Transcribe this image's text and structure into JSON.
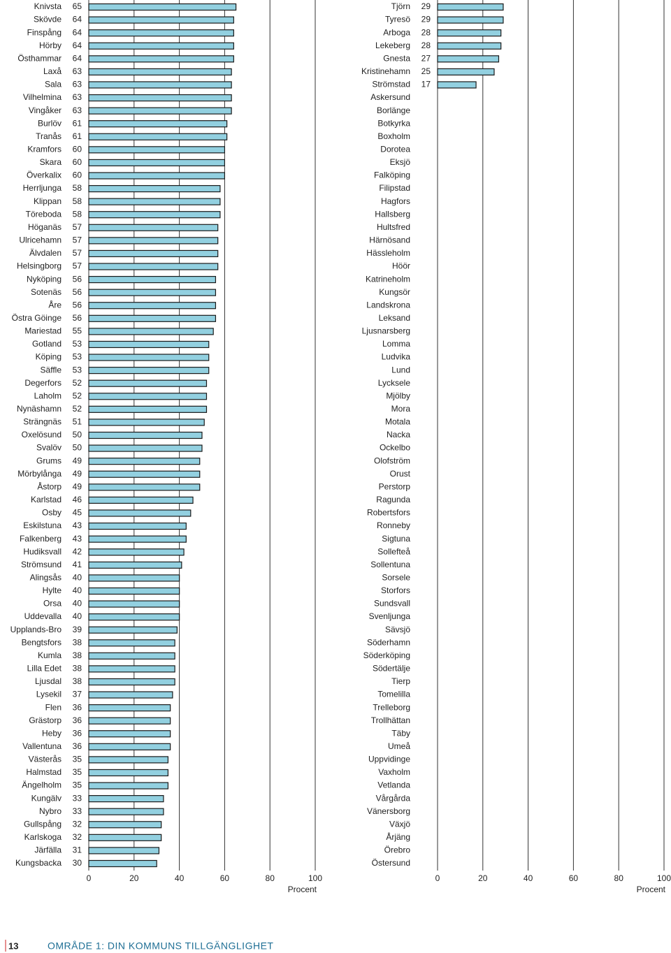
{
  "chart_data": [
    {
      "type": "bar",
      "orientation": "horizontal",
      "categories": [
        "Knivsta",
        "Skövde",
        "Finspång",
        "Hörby",
        "Östhammar",
        "Laxå",
        "Sala",
        "Vilhelmina",
        "Vingåker",
        "Burlöv",
        "Tranås",
        "Kramfors",
        "Skara",
        "Överkalix",
        "Herrljunga",
        "Klippan",
        "Töreboda",
        "Höganäs",
        "Ulricehamn",
        "Älvdalen",
        "Helsingborg",
        "Nyköping",
        "Sotenäs",
        "Åre",
        "Östra Göinge",
        "Mariestad",
        "Gotland",
        "Köping",
        "Säffle",
        "Degerfors",
        "Laholm",
        "Nynäshamn",
        "Strängnäs",
        "Oxelösund",
        "Svalöv",
        "Grums",
        "Mörbylånga",
        "Åstorp",
        "Karlstad",
        "Osby",
        "Eskilstuna",
        "Falkenberg",
        "Hudiksvall",
        "Strömsund",
        "Alingsås",
        "Hylte",
        "Orsa",
        "Uddevalla",
        "Upplands-Bro",
        "Bengtsfors",
        "Kumla",
        "Lilla Edet",
        "Ljusdal",
        "Lysekil",
        "Flen",
        "Grästorp",
        "Heby",
        "Vallentuna",
        "Västerås",
        "Halmstad",
        "Ängelholm",
        "Kungälv",
        "Nybro",
        "Gullspång",
        "Karlskoga",
        "Järfälla",
        "Kungsbacka"
      ],
      "values": [
        65,
        64,
        64,
        64,
        64,
        63,
        63,
        63,
        63,
        61,
        61,
        60,
        60,
        60,
        58,
        58,
        58,
        57,
        57,
        57,
        57,
        56,
        56,
        56,
        56,
        55,
        53,
        53,
        53,
        52,
        52,
        52,
        51,
        50,
        50,
        49,
        49,
        49,
        46,
        45,
        43,
        43,
        42,
        41,
        40,
        40,
        40,
        40,
        39,
        38,
        38,
        38,
        38,
        37,
        36,
        36,
        36,
        36,
        35,
        35,
        35,
        33,
        33,
        32,
        32,
        31,
        30
      ],
      "color": "#92d0e0",
      "xlim": [
        0,
        100
      ],
      "xticks": [
        0,
        20,
        40,
        60,
        80,
        100
      ],
      "xlabel": "Procent",
      "grid": true
    },
    {
      "type": "bar",
      "orientation": "horizontal",
      "categories": [
        "Tjörn",
        "Tyresö",
        "Arboga",
        "Lekeberg",
        "Gnesta",
        "Kristinehamn",
        "Strömstad",
        "Askersund",
        "Borlänge",
        "Botkyrka",
        "Boxholm",
        "Dorotea",
        "Eksjö",
        "Falköping",
        "Filipstad",
        "Hagfors",
        "Hallsberg",
        "Hultsfred",
        "Härnösand",
        "Hässleholm",
        "Höör",
        "Katrineholm",
        "Kungsör",
        "Landskrona",
        "Leksand",
        "Ljusnarsberg",
        "Lomma",
        "Ludvika",
        "Lund",
        "Lycksele",
        "Mjölby",
        "Mora",
        "Motala",
        "Nacka",
        "Ockelbo",
        "Olofström",
        "Orust",
        "Perstorp",
        "Ragunda",
        "Robertsfors",
        "Ronneby",
        "Sigtuna",
        "Sollefteå",
        "Sollentuna",
        "Sorsele",
        "Storfors",
        "Sundsvall",
        "Svenljunga",
        "Sävsjö",
        "Söderhamn",
        "Söderköping",
        "Södertälje",
        "Tierp",
        "Tomelilla",
        "Trelleborg",
        "Trollhättan",
        "Täby",
        "Umeå",
        "Uppvidinge",
        "Vaxholm",
        "Vetlanda",
        "Vårgårda",
        "Vänersborg",
        "Växjö",
        "Årjäng",
        "Örebro",
        "Östersund"
      ],
      "values": [
        29,
        29,
        28,
        28,
        27,
        25,
        17,
        null,
        null,
        null,
        null,
        null,
        null,
        null,
        null,
        null,
        null,
        null,
        null,
        null,
        null,
        null,
        null,
        null,
        null,
        null,
        null,
        null,
        null,
        null,
        null,
        null,
        null,
        null,
        null,
        null,
        null,
        null,
        null,
        null,
        null,
        null,
        null,
        null,
        null,
        null,
        null,
        null,
        null,
        null,
        null,
        null,
        null,
        null,
        null,
        null,
        null,
        null,
        null,
        null,
        null,
        null,
        null,
        null,
        null,
        null,
        null
      ],
      "color": "#92d0e0",
      "xlim": [
        0,
        100
      ],
      "xticks": [
        0,
        20,
        40,
        60,
        80,
        100
      ],
      "xlabel": "Procent",
      "grid": true
    }
  ],
  "footer": {
    "page_number": "13",
    "section": "OMRÅDE 1: DIN KOMMUNS TILLGÄNGLIGHET"
  }
}
